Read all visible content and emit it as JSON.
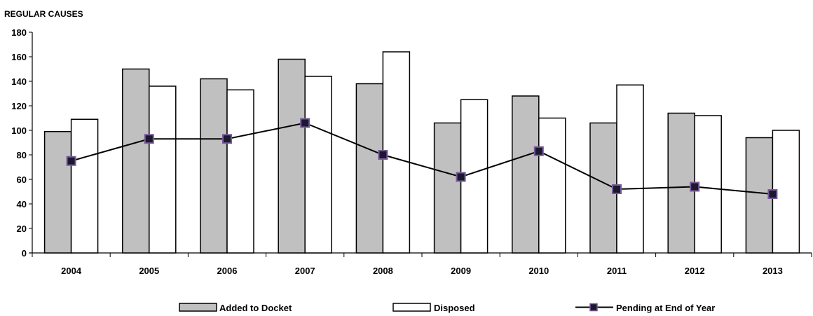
{
  "chart_data": {
    "type": "bar",
    "title": "REGULAR CAUSES",
    "categories": [
      "2004",
      "2005",
      "2006",
      "2007",
      "2008",
      "2009",
      "2010",
      "2011",
      "2012",
      "2013"
    ],
    "series": [
      {
        "name": "Added to Docket",
        "type": "bar",
        "color": "#c0c0c0",
        "values": [
          99,
          150,
          142,
          158,
          138,
          106,
          128,
          106,
          114,
          94
        ]
      },
      {
        "name": "Disposed",
        "type": "bar",
        "color": "#ffffff",
        "values": [
          109,
          136,
          133,
          144,
          164,
          125,
          110,
          137,
          112,
          100
        ]
      },
      {
        "name": "Pending at End of Year",
        "type": "line",
        "color": "#000000",
        "marker_color": "#1a1a2e",
        "marker_border": "#7a5a9a",
        "values": [
          75,
          93,
          93,
          106,
          80,
          62,
          83,
          52,
          54,
          48
        ]
      }
    ],
    "ylim": [
      0,
      180
    ],
    "yticks": [
      "0",
      "20",
      "40",
      "60",
      "80",
      "100",
      "120",
      "140",
      "160",
      "180"
    ],
    "grid": false,
    "legend_position": "bottom"
  }
}
